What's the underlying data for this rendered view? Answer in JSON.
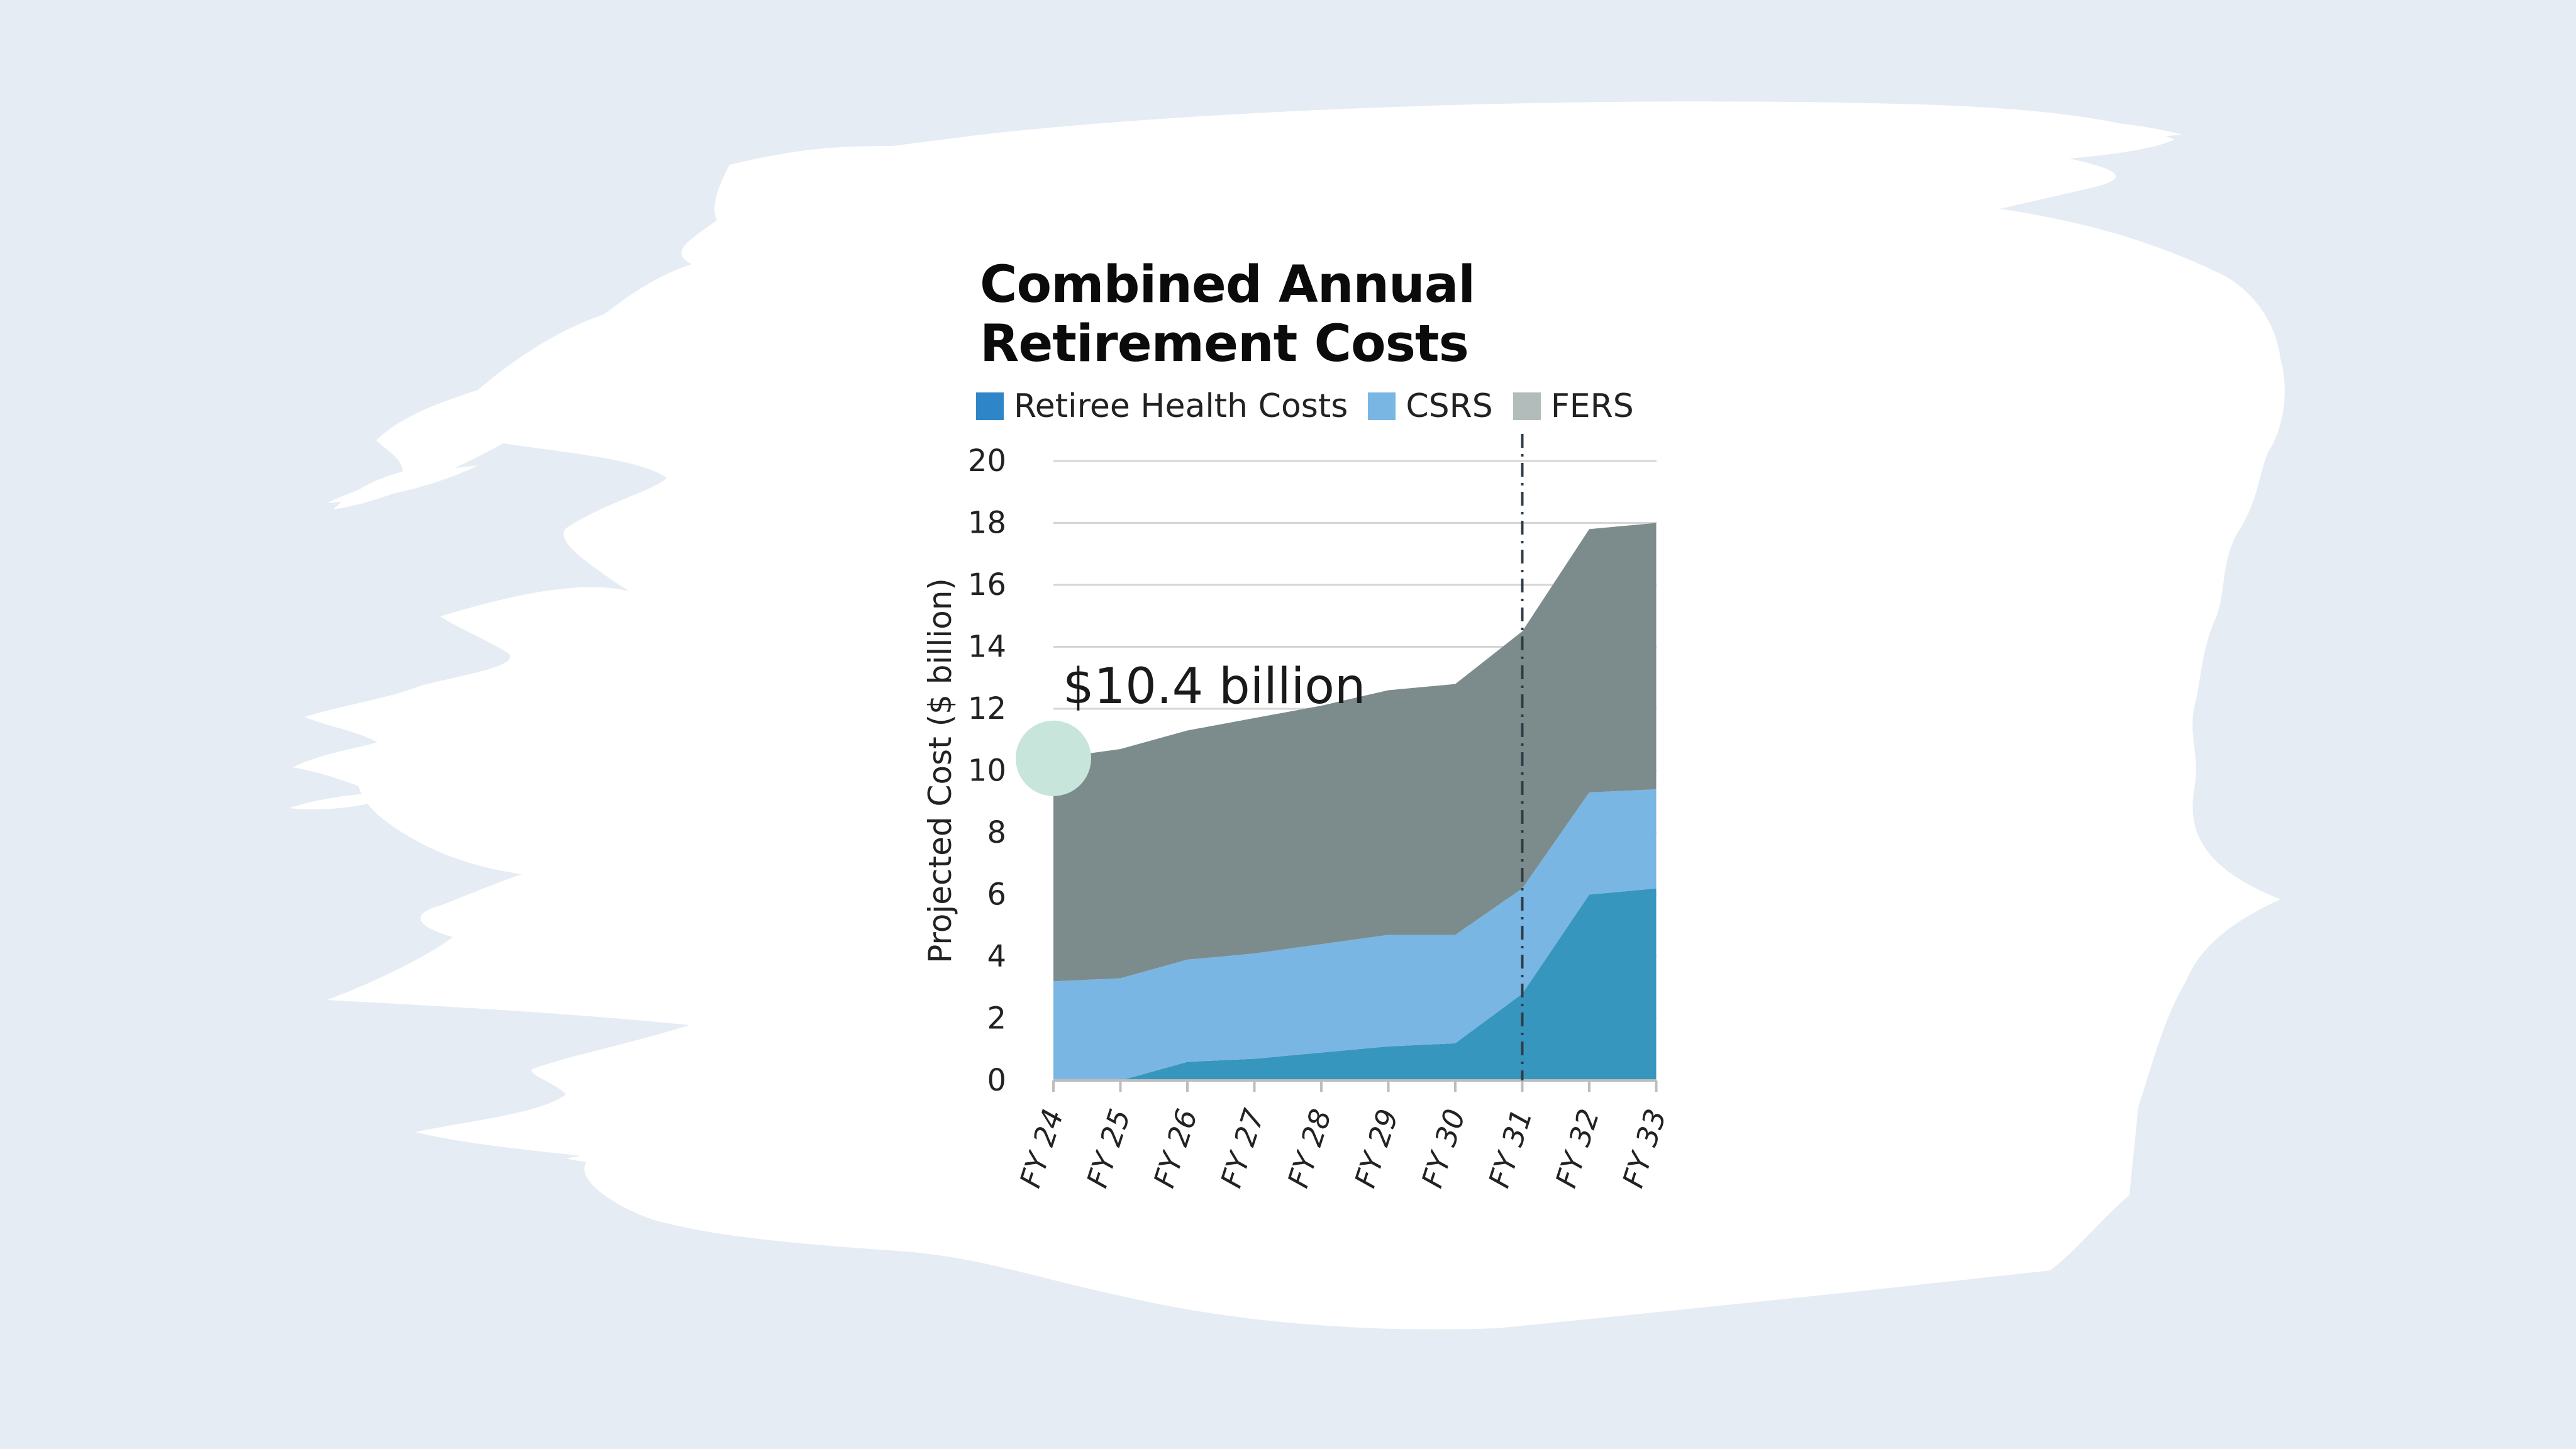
{
  "chart_data": {
    "type": "area",
    "stacked": true,
    "title_lines": [
      "Combined Annual",
      "Retirement Costs"
    ],
    "ylabel": "Projected Cost ($ billion)",
    "ylim": [
      0,
      20
    ],
    "yticks": [
      0,
      2,
      4,
      6,
      8,
      10,
      12,
      14,
      16,
      18,
      20
    ],
    "categories": [
      "FY 24",
      "FY 25",
      "FY 26",
      "FY 27",
      "FY 28",
      "FY 29",
      "FY 30",
      "FY 31",
      "FY 32",
      "FY 33"
    ],
    "series": [
      {
        "name": "Retiree Health Costs",
        "color": "#3796be",
        "values": [
          0,
          0,
          0.6,
          0.7,
          0.9,
          1.1,
          1.2,
          2.8,
          6.0,
          6.2
        ]
      },
      {
        "name": "CSRS",
        "color": "#7ab6e3",
        "values": [
          3.2,
          3.3,
          3.3,
          3.4,
          3.5,
          3.6,
          3.5,
          3.4,
          3.3,
          3.2
        ]
      },
      {
        "name": "FERS",
        "color": "#7c8c8c",
        "values": [
          7.2,
          7.4,
          7.4,
          7.6,
          7.7,
          7.9,
          8.1,
          8.3,
          8.5,
          8.6
        ]
      }
    ],
    "legend_swatch_colors": [
      "#2e86c8",
      "#7ab6e3",
      "#b1bcbb"
    ],
    "legend_position": "top-left",
    "grid": "horizontal",
    "marker_line": {
      "category": "FY 31",
      "style": "dash-dot"
    },
    "annotation": {
      "text": "$10.4 billion",
      "category": "FY 24",
      "value": 10.4,
      "marker_color": "#c8e5dc"
    }
  }
}
